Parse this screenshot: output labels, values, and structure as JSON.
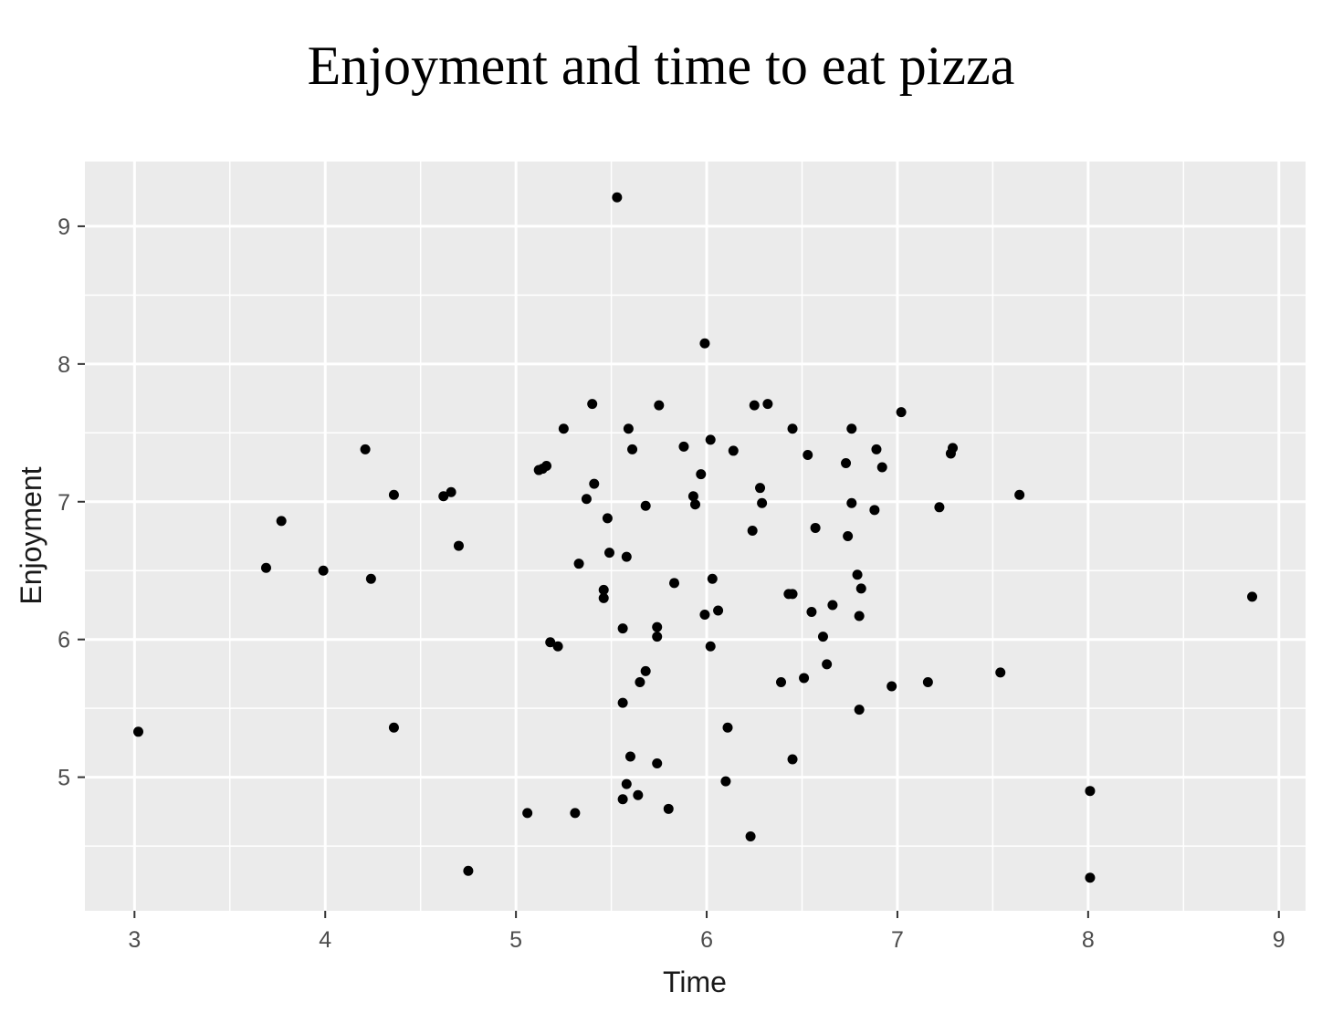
{
  "chart_data": {
    "type": "scatter",
    "title": "Enjoyment and time to eat pizza",
    "xlabel": "Time",
    "ylabel": "Enjoyment",
    "xlim": [
      2.74,
      9.14
    ],
    "ylim": [
      4.03,
      9.47
    ],
    "x_ticks": [
      3,
      4,
      5,
      6,
      7,
      8,
      9
    ],
    "y_ticks": [
      5,
      6,
      7,
      8,
      9
    ],
    "x_tick_labels": [
      "3",
      "4",
      "5",
      "6",
      "7",
      "8",
      "9"
    ],
    "y_tick_labels": [
      "5",
      "6",
      "7",
      "8",
      "9"
    ],
    "grid": true,
    "background_color": "#ebebeb",
    "gridline_color": "#ffffff",
    "point_color": "#000000",
    "points": [
      [
        3.02,
        5.33
      ],
      [
        3.69,
        6.52
      ],
      [
        3.77,
        6.86
      ],
      [
        3.99,
        6.5
      ],
      [
        4.21,
        7.38
      ],
      [
        4.24,
        6.44
      ],
      [
        4.36,
        7.05
      ],
      [
        4.36,
        5.36
      ],
      [
        4.62,
        7.04
      ],
      [
        4.66,
        7.07
      ],
      [
        4.7,
        6.68
      ],
      [
        4.75,
        4.32
      ],
      [
        5.06,
        4.74
      ],
      [
        5.12,
        7.23
      ],
      [
        5.14,
        7.24
      ],
      [
        5.16,
        7.26
      ],
      [
        5.18,
        5.98
      ],
      [
        5.22,
        5.95
      ],
      [
        5.25,
        7.53
      ],
      [
        5.31,
        4.74
      ],
      [
        5.33,
        6.55
      ],
      [
        5.37,
        7.02
      ],
      [
        5.4,
        7.71
      ],
      [
        5.41,
        7.13
      ],
      [
        5.46,
        6.36
      ],
      [
        5.46,
        6.3
      ],
      [
        5.48,
        6.88
      ],
      [
        5.49,
        6.63
      ],
      [
        5.53,
        9.21
      ],
      [
        5.56,
        6.08
      ],
      [
        5.56,
        5.54
      ],
      [
        5.56,
        4.84
      ],
      [
        5.58,
        6.6
      ],
      [
        5.58,
        4.95
      ],
      [
        5.59,
        7.53
      ],
      [
        5.6,
        5.15
      ],
      [
        5.61,
        7.38
      ],
      [
        5.64,
        4.87
      ],
      [
        5.65,
        5.69
      ],
      [
        5.68,
        5.77
      ],
      [
        5.68,
        6.97
      ],
      [
        5.74,
        6.09
      ],
      [
        5.74,
        6.02
      ],
      [
        5.74,
        5.1
      ],
      [
        5.75,
        7.7
      ],
      [
        5.8,
        4.77
      ],
      [
        5.83,
        6.41
      ],
      [
        5.88,
        7.4
      ],
      [
        5.93,
        7.04
      ],
      [
        5.94,
        6.98
      ],
      [
        5.97,
        7.2
      ],
      [
        5.99,
        8.15
      ],
      [
        5.99,
        6.18
      ],
      [
        6.02,
        7.45
      ],
      [
        6.02,
        5.95
      ],
      [
        6.03,
        6.44
      ],
      [
        6.06,
        6.21
      ],
      [
        6.1,
        4.97
      ],
      [
        6.11,
        5.36
      ],
      [
        6.14,
        7.37
      ],
      [
        6.23,
        4.57
      ],
      [
        6.24,
        6.79
      ],
      [
        6.25,
        7.7
      ],
      [
        6.28,
        7.1
      ],
      [
        6.29,
        6.99
      ],
      [
        6.32,
        7.71
      ],
      [
        6.39,
        5.69
      ],
      [
        6.43,
        6.33
      ],
      [
        6.45,
        6.33
      ],
      [
        6.45,
        7.53
      ],
      [
        6.45,
        5.13
      ],
      [
        6.51,
        5.72
      ],
      [
        6.53,
        7.34
      ],
      [
        6.55,
        6.2
      ],
      [
        6.57,
        6.81
      ],
      [
        6.61,
        6.02
      ],
      [
        6.63,
        5.82
      ],
      [
        6.66,
        6.25
      ],
      [
        6.73,
        7.28
      ],
      [
        6.74,
        6.75
      ],
      [
        6.76,
        7.53
      ],
      [
        6.76,
        6.99
      ],
      [
        6.79,
        6.47
      ],
      [
        6.8,
        6.17
      ],
      [
        6.8,
        5.49
      ],
      [
        6.81,
        6.37
      ],
      [
        6.88,
        6.94
      ],
      [
        6.89,
        7.38
      ],
      [
        6.92,
        7.25
      ],
      [
        6.97,
        5.66
      ],
      [
        7.02,
        7.65
      ],
      [
        7.16,
        5.69
      ],
      [
        7.22,
        6.96
      ],
      [
        7.28,
        7.35
      ],
      [
        7.29,
        7.39
      ],
      [
        7.54,
        5.76
      ],
      [
        7.64,
        7.05
      ],
      [
        8.01,
        4.9
      ],
      [
        8.01,
        4.27
      ],
      [
        8.86,
        6.31
      ]
    ]
  }
}
